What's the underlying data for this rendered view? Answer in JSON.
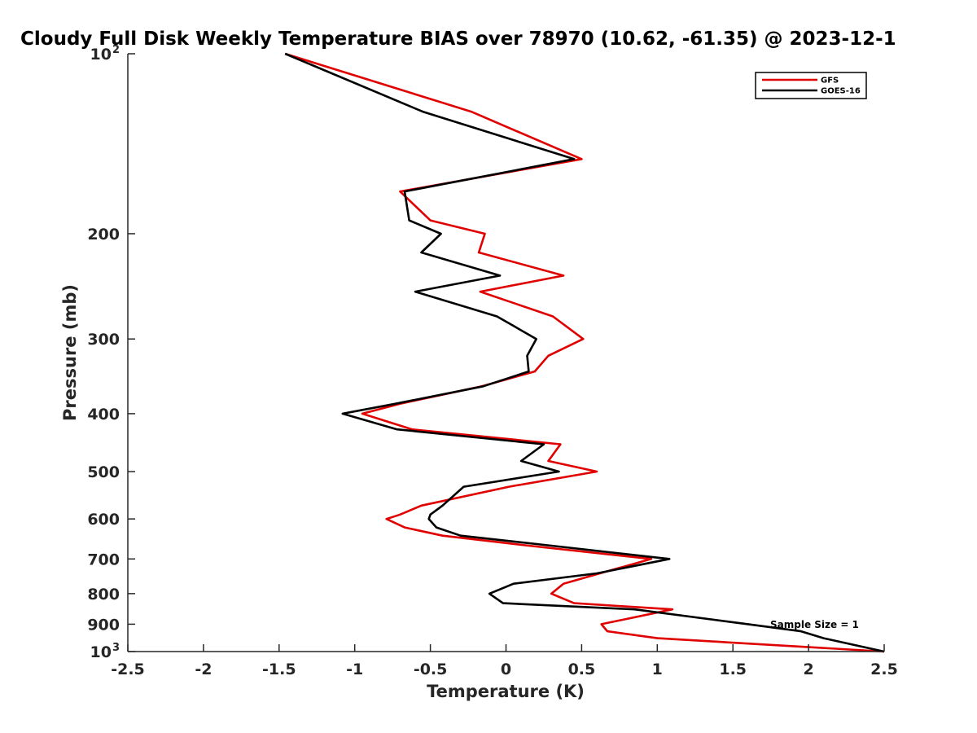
{
  "chart_data": {
    "type": "line",
    "title": "Cloudy Full Disk Weekly Temperature BIAS over 78970 (10.62, -61.35) @ 2023-12-1",
    "xlabel": "Temperature (K)",
    "ylabel": "Pressure (mb)",
    "xlim": [
      -2.5,
      2.5
    ],
    "ylim": [
      100,
      1000
    ],
    "y_scale": "log",
    "y_reversed": true,
    "x_ticks": [
      -2.5,
      -2,
      -1.5,
      -1,
      -0.5,
      0,
      0.5,
      1,
      1.5,
      2,
      2.5
    ],
    "x_tick_labels": [
      "-2.5",
      "-2",
      "-1.5",
      "-1",
      "-0.5",
      "0",
      "0.5",
      "1",
      "1.5",
      "2",
      "2.5"
    ],
    "y_ticks": [
      {
        "value": 100,
        "label": "10",
        "sup": "2"
      },
      {
        "value": 200,
        "label": "200"
      },
      {
        "value": 300,
        "label": "300"
      },
      {
        "value": 400,
        "label": "400"
      },
      {
        "value": 500,
        "label": "500"
      },
      {
        "value": 600,
        "label": "600"
      },
      {
        "value": 700,
        "label": "700"
      },
      {
        "value": 800,
        "label": "800"
      },
      {
        "value": 900,
        "label": "900"
      },
      {
        "value": 1000,
        "label": "10",
        "sup": "3"
      }
    ],
    "grid": false,
    "legend_position": "top-right",
    "annotation": "Sample Size = 1",
    "series": [
      {
        "name": "GFS",
        "color": "#e00000",
        "points": [
          [
            -1.46,
            100
          ],
          [
            -0.23,
            125
          ],
          [
            0.5,
            150
          ],
          [
            -0.7,
            170
          ],
          [
            -0.5,
            190
          ],
          [
            -0.14,
            200
          ],
          [
            -0.18,
            215
          ],
          [
            0.38,
            235
          ],
          [
            -0.17,
            250
          ],
          [
            0.31,
            275
          ],
          [
            0.51,
            300
          ],
          [
            0.28,
            320
          ],
          [
            0.19,
            340
          ],
          [
            -0.16,
            360
          ],
          [
            -0.7,
            385
          ],
          [
            -0.95,
            400
          ],
          [
            -0.62,
            425
          ],
          [
            0.36,
            450
          ],
          [
            0.28,
            480
          ],
          [
            0.6,
            500
          ],
          [
            0.02,
            530
          ],
          [
            -0.56,
            570
          ],
          [
            -0.7,
            590
          ],
          [
            -0.79,
            600
          ],
          [
            -0.67,
            620
          ],
          [
            -0.42,
            640
          ],
          [
            0.15,
            665
          ],
          [
            0.96,
            700
          ],
          [
            0.62,
            740
          ],
          [
            0.38,
            770
          ],
          [
            0.3,
            800
          ],
          [
            0.45,
            830
          ],
          [
            1.1,
            850
          ],
          [
            0.63,
            900
          ],
          [
            0.67,
            925
          ],
          [
            1.0,
            950
          ],
          [
            2.5,
            1000
          ]
        ]
      },
      {
        "name": "GOES-16",
        "color": "#000000",
        "points": [
          [
            -1.46,
            100
          ],
          [
            -0.55,
            125
          ],
          [
            0.45,
            150
          ],
          [
            -0.67,
            170
          ],
          [
            -0.64,
            190
          ],
          [
            -0.43,
            200
          ],
          [
            -0.56,
            215
          ],
          [
            -0.04,
            235
          ],
          [
            -0.6,
            250
          ],
          [
            -0.06,
            275
          ],
          [
            0.2,
            300
          ],
          [
            0.14,
            320
          ],
          [
            0.15,
            340
          ],
          [
            -0.15,
            360
          ],
          [
            -0.73,
            385
          ],
          [
            -1.08,
            400
          ],
          [
            -0.72,
            425
          ],
          [
            0.25,
            450
          ],
          [
            0.1,
            480
          ],
          [
            0.35,
            500
          ],
          [
            -0.28,
            530
          ],
          [
            -0.42,
            570
          ],
          [
            -0.5,
            590
          ],
          [
            -0.51,
            600
          ],
          [
            -0.46,
            620
          ],
          [
            -0.3,
            640
          ],
          [
            0.3,
            665
          ],
          [
            1.08,
            700
          ],
          [
            0.6,
            740
          ],
          [
            0.05,
            770
          ],
          [
            -0.11,
            800
          ],
          [
            -0.02,
            830
          ],
          [
            0.85,
            850
          ],
          [
            1.6,
            900
          ],
          [
            1.95,
            925
          ],
          [
            2.1,
            950
          ],
          [
            2.5,
            1000
          ]
        ]
      }
    ]
  }
}
